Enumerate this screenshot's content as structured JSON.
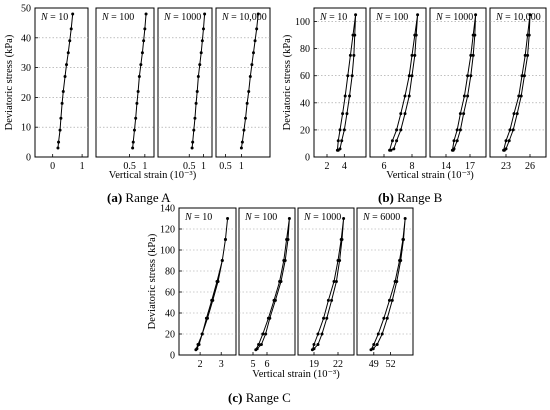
{
  "caption_a": {
    "letter": "(a)",
    "text": " Range A"
  },
  "caption_b": {
    "letter": "(b)",
    "text": " Range B"
  },
  "caption_c": {
    "letter": "(c)",
    "text": " Range C"
  },
  "chart_data": [
    {
      "id": "A",
      "type": "line",
      "ylabel": "Deviatoric stress (kPa)",
      "xlabel": "Vertical strain (10⁻³)",
      "ylim": [
        0,
        50
      ],
      "yticks": [
        0,
        10,
        20,
        30,
        40,
        50
      ],
      "grid": "horizontal dotted",
      "panels": [
        {
          "label_prefix": "N",
          "label_value": "= 10",
          "xlim": [
            -0.6,
            1.2
          ],
          "xticks": [
            0,
            1
          ],
          "x": [
            0.18,
            0.2,
            0.25,
            0.28,
            0.32,
            0.36,
            0.42,
            0.47,
            0.53,
            0.58,
            0.63,
            0.68
          ],
          "y": [
            3,
            5,
            9,
            13,
            18,
            22,
            27,
            31,
            35,
            39,
            43,
            48
          ]
        },
        {
          "label_prefix": "N",
          "label_value": "= 100",
          "xlim": [
            -0.6,
            1.3
          ],
          "xticks": [
            0.5,
            1
          ],
          "x": [
            0.6,
            0.62,
            0.66,
            0.7,
            0.74,
            0.78,
            0.82,
            0.87,
            0.92,
            0.96,
            1.0,
            1.04
          ],
          "y": [
            3,
            5,
            9,
            13,
            18,
            22,
            27,
            31,
            35,
            39,
            43,
            48
          ]
        },
        {
          "label_prefix": "N",
          "label_value": "= 1000",
          "xlim": [
            -0.6,
            1.3
          ],
          "xticks": [
            0.5,
            1
          ],
          "x": [
            0.6,
            0.62,
            0.66,
            0.7,
            0.74,
            0.78,
            0.82,
            0.87,
            0.92,
            0.96,
            1.0,
            1.04
          ],
          "y": [
            3,
            5,
            9,
            13,
            18,
            22,
            27,
            31,
            35,
            39,
            43,
            48
          ]
        },
        {
          "label_prefix": "N",
          "label_value": "= 10,000",
          "xlim": [
            0.2,
            1.9
          ],
          "xticks": [
            0.5,
            1
          ],
          "x": [
            1.0,
            1.03,
            1.08,
            1.13,
            1.18,
            1.23,
            1.28,
            1.33,
            1.38,
            1.43,
            1.48,
            1.53
          ],
          "y": [
            3,
            5,
            9,
            13,
            18,
            22,
            27,
            31,
            35,
            39,
            43,
            48
          ]
        }
      ]
    },
    {
      "id": "B",
      "type": "line",
      "ylabel": "Deviatoric stress (kPa)",
      "xlabel": "Vertical strain (10⁻³)",
      "ylim": [
        0,
        110
      ],
      "yticks": [
        0,
        20,
        40,
        60,
        80,
        100
      ],
      "grid": "horizontal dotted",
      "panels": [
        {
          "label_prefix": "N",
          "label_value": "= 10",
          "xlim": [
            0.5,
            6.5
          ],
          "xticks": [
            2,
            4
          ],
          "x": [
            3.2,
            3.3,
            3.5,
            3.8,
            4.1,
            4.4,
            4.7,
            5.0,
            5.3,
            5.2,
            5.1,
            4.9,
            4.6,
            4.3,
            4.0,
            3.7,
            3.5,
            3.3
          ],
          "y": [
            5,
            12,
            20,
            32,
            45,
            60,
            75,
            90,
            105,
            90,
            75,
            60,
            45,
            32,
            20,
            12,
            6,
            5
          ]
        },
        {
          "label_prefix": "N",
          "label_value": "= 100",
          "xlim": [
            5.0,
            9.0
          ],
          "xticks": [
            6,
            8
          ],
          "x": [
            6.4,
            6.6,
            6.9,
            7.2,
            7.5,
            7.8,
            8.0,
            8.2,
            8.4,
            8.3,
            8.2,
            8.0,
            7.8,
            7.5,
            7.2,
            6.9,
            6.7,
            6.5
          ],
          "y": [
            5,
            12,
            20,
            32,
            45,
            60,
            75,
            90,
            105,
            90,
            75,
            60,
            45,
            32,
            20,
            12,
            6,
            5
          ]
        },
        {
          "label_prefix": "N",
          "label_value": "= 1000",
          "xlim": [
            12.0,
            19.0
          ],
          "xticks": [
            14,
            17
          ],
          "x": [
            14.8,
            15.0,
            15.4,
            15.8,
            16.3,
            16.7,
            17.1,
            17.4,
            17.7,
            17.6,
            17.4,
            17.1,
            16.7,
            16.2,
            15.8,
            15.4,
            15.0,
            14.9
          ],
          "y": [
            5,
            12,
            20,
            32,
            45,
            60,
            75,
            90,
            105,
            90,
            75,
            60,
            45,
            32,
            20,
            12,
            6,
            5
          ]
        },
        {
          "label_prefix": "N",
          "label_value": "= 10,000",
          "xlim": [
            21.0,
            28.0
          ],
          "xticks": [
            23,
            26
          ],
          "x": [
            22.7,
            23.0,
            23.5,
            24.0,
            24.6,
            25.0,
            25.4,
            25.7,
            26.0,
            25.9,
            25.7,
            25.3,
            24.9,
            24.4,
            23.9,
            23.4,
            23.0,
            22.8
          ],
          "y": [
            5,
            12,
            20,
            32,
            45,
            60,
            75,
            90,
            105,
            90,
            75,
            60,
            45,
            32,
            20,
            12,
            6,
            5
          ]
        }
      ]
    },
    {
      "id": "C",
      "type": "line",
      "ylabel": "Deviatoric stress (kPa)",
      "xlabel": "Vertical strain (10⁻³)",
      "ylim": [
        0,
        140
      ],
      "yticks": [
        0,
        20,
        40,
        60,
        80,
        100,
        120,
        140
      ],
      "grid": "horizontal dotted",
      "panels": [
        {
          "label_prefix": "N",
          "label_value": "= 10",
          "xlim": [
            1.0,
            3.7
          ],
          "xticks": [
            2,
            3
          ],
          "x": [
            1.8,
            1.9,
            2.1,
            2.35,
            2.6,
            2.85,
            3.05,
            3.2,
            3.3,
            3.2,
            3.05,
            2.8,
            2.55,
            2.3,
            2.1,
            1.95,
            1.85
          ],
          "y": [
            5,
            10,
            20,
            35,
            52,
            70,
            90,
            110,
            130,
            110,
            90,
            70,
            52,
            35,
            20,
            10,
            6
          ]
        },
        {
          "label_prefix": "N",
          "label_value": "= 100",
          "xlim": [
            4.0,
            8.0
          ],
          "xticks": [
            5,
            6
          ],
          "x": [
            5.2,
            5.4,
            5.7,
            6.1,
            6.5,
            6.9,
            7.2,
            7.4,
            7.6,
            7.5,
            7.3,
            7.0,
            6.6,
            6.2,
            5.9,
            5.6,
            5.3
          ],
          "y": [
            5,
            10,
            20,
            35,
            52,
            70,
            90,
            110,
            130,
            110,
            90,
            70,
            52,
            35,
            20,
            10,
            6
          ]
        },
        {
          "label_prefix": "N",
          "label_value": "= 1000",
          "xlim": [
            17.0,
            24.0
          ],
          "xticks": [
            19,
            22
          ],
          "x": [
            18.8,
            19.0,
            19.5,
            20.2,
            20.8,
            21.5,
            22.0,
            22.4,
            22.7,
            22.5,
            22.2,
            21.8,
            21.2,
            20.6,
            20.0,
            19.5,
            19.0
          ],
          "y": [
            5,
            10,
            20,
            35,
            52,
            70,
            90,
            110,
            130,
            110,
            90,
            70,
            52,
            35,
            20,
            10,
            6
          ]
        },
        {
          "label_prefix": "N",
          "label_value": "= 6000",
          "xlim": [
            46.0,
            56.0
          ],
          "xticks": [
            49,
            52
          ],
          "x": [
            48.5,
            49.0,
            49.8,
            50.8,
            51.8,
            52.8,
            53.6,
            54.2,
            54.6,
            54.3,
            53.8,
            53.1,
            52.3,
            51.4,
            50.5,
            49.6,
            48.9
          ],
          "y": [
            5,
            10,
            20,
            35,
            52,
            70,
            90,
            110,
            130,
            110,
            90,
            70,
            52,
            35,
            20,
            10,
            6
          ]
        }
      ]
    }
  ]
}
